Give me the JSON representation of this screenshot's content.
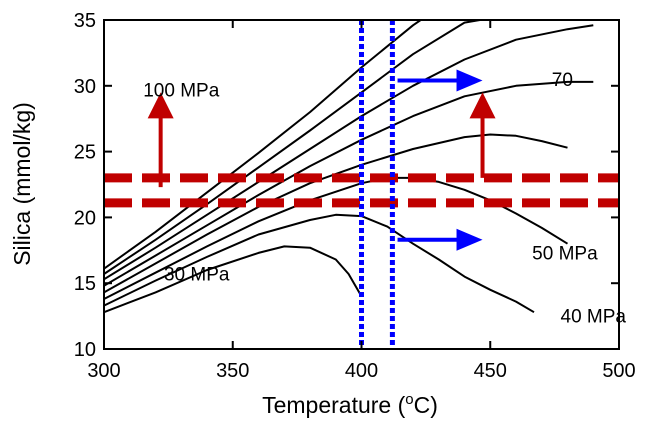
{
  "chart_data": {
    "type": "line",
    "xlabel": "Temperature (",
    "xlabel_degree": "o",
    "xlabel_unit": "C)",
    "ylabel": "Silica (mmol/kg)",
    "xlim": [
      300,
      500
    ],
    "ylim": [
      10,
      35
    ],
    "xticks": [
      300,
      350,
      400,
      450,
      500
    ],
    "yticks": [
      10,
      15,
      20,
      25,
      30,
      35
    ],
    "grid": false,
    "legend": "none",
    "series": [
      {
        "points": [
          [
            300,
            12.8
          ],
          [
            320,
            14.3
          ],
          [
            340,
            16.0
          ],
          [
            360,
            17.3
          ],
          [
            370,
            17.8
          ],
          [
            380,
            17.7
          ],
          [
            390,
            16.8
          ],
          [
            395,
            15.7
          ],
          [
            400,
            14.0
          ]
        ]
      },
      {
        "points": [
          [
            300,
            13.3
          ],
          [
            320,
            15.2
          ],
          [
            340,
            17.0
          ],
          [
            360,
            18.7
          ],
          [
            380,
            19.8
          ],
          [
            390,
            20.2
          ],
          [
            400,
            20.1
          ],
          [
            410,
            19.3
          ],
          [
            420,
            18.0
          ],
          [
            430,
            16.8
          ],
          [
            440,
            15.5
          ],
          [
            450,
            14.5
          ],
          [
            460,
            13.6
          ],
          [
            467,
            12.8
          ]
        ]
      },
      {
        "points": [
          [
            300,
            13.8
          ],
          [
            320,
            15.8
          ],
          [
            340,
            17.8
          ],
          [
            360,
            19.7
          ],
          [
            380,
            21.3
          ],
          [
            400,
            22.6
          ],
          [
            410,
            23.0
          ],
          [
            420,
            23.0
          ],
          [
            430,
            22.7
          ],
          [
            440,
            22.1
          ],
          [
            450,
            21.3
          ],
          [
            460,
            20.3
          ],
          [
            470,
            19.2
          ],
          [
            480,
            18.0
          ]
        ]
      },
      {
        "points": [
          [
            300,
            14.3
          ],
          [
            320,
            16.5
          ],
          [
            340,
            18.7
          ],
          [
            360,
            20.8
          ],
          [
            380,
            22.6
          ],
          [
            400,
            24.0
          ],
          [
            420,
            25.2
          ],
          [
            440,
            26.1
          ],
          [
            450,
            26.3
          ],
          [
            460,
            26.2
          ],
          [
            470,
            25.8
          ],
          [
            480,
            25.3
          ]
        ]
      },
      {
        "points": [
          [
            300,
            14.8
          ],
          [
            320,
            17.1
          ],
          [
            340,
            19.4
          ],
          [
            360,
            21.7
          ],
          [
            380,
            23.9
          ],
          [
            400,
            25.9
          ],
          [
            420,
            27.7
          ],
          [
            440,
            29.2
          ],
          [
            460,
            30.0
          ],
          [
            480,
            30.3
          ],
          [
            490,
            30.3
          ]
        ]
      },
      {
        "points": [
          [
            300,
            15.3
          ],
          [
            320,
            17.7
          ],
          [
            340,
            20.2
          ],
          [
            360,
            22.7
          ],
          [
            380,
            25.2
          ],
          [
            400,
            27.7
          ],
          [
            420,
            30.0
          ],
          [
            440,
            32.0
          ],
          [
            460,
            33.5
          ],
          [
            480,
            34.3
          ],
          [
            490,
            34.6
          ]
        ]
      },
      {
        "points": [
          [
            300,
            15.7
          ],
          [
            320,
            18.3
          ],
          [
            340,
            21.0
          ],
          [
            360,
            23.8
          ],
          [
            380,
            26.6
          ],
          [
            400,
            29.5
          ],
          [
            420,
            32.4
          ],
          [
            440,
            34.8
          ],
          [
            446,
            35.0
          ]
        ]
      },
      {
        "points": [
          [
            300,
            16.1
          ],
          [
            320,
            18.9
          ],
          [
            340,
            21.9
          ],
          [
            360,
            24.9
          ],
          [
            380,
            28.0
          ],
          [
            400,
            31.4
          ],
          [
            420,
            34.6
          ],
          [
            423,
            35.0
          ]
        ]
      }
    ],
    "curve_labels": [
      {
        "text": "30 MPa",
        "x": 336,
        "y": 15.2
      },
      {
        "text": "40 MPa",
        "x": 490,
        "y": 12.0
      },
      {
        "text": "50 MPa",
        "x": 479,
        "y": 16.8
      },
      {
        "text": "70",
        "x": 478,
        "y": 30.0
      },
      {
        "text": "100 MPa",
        "x": 330,
        "y": 29.2
      }
    ],
    "reference_lines": {
      "horizontal_dashed": [
        21.1,
        23.0
      ],
      "vertical_dotted": [
        400,
        412
      ]
    },
    "annotation_arrows": [
      {
        "direction": "up",
        "color": "#c00000",
        "x": 322,
        "from": 22.3,
        "to": 29.5
      },
      {
        "direction": "up",
        "color": "#c00000",
        "x": 447,
        "from": 23.0,
        "to": 29.5
      },
      {
        "direction": "right",
        "color": "#0000ff",
        "y": 30.4,
        "from": 414,
        "to": 447
      },
      {
        "direction": "right",
        "color": "#0000ff",
        "y": 18.3,
        "from": 414,
        "to": 447
      }
    ],
    "colors": {
      "curves": "#000000",
      "dashed": "#c00000",
      "dotted": "#0000ff"
    }
  }
}
